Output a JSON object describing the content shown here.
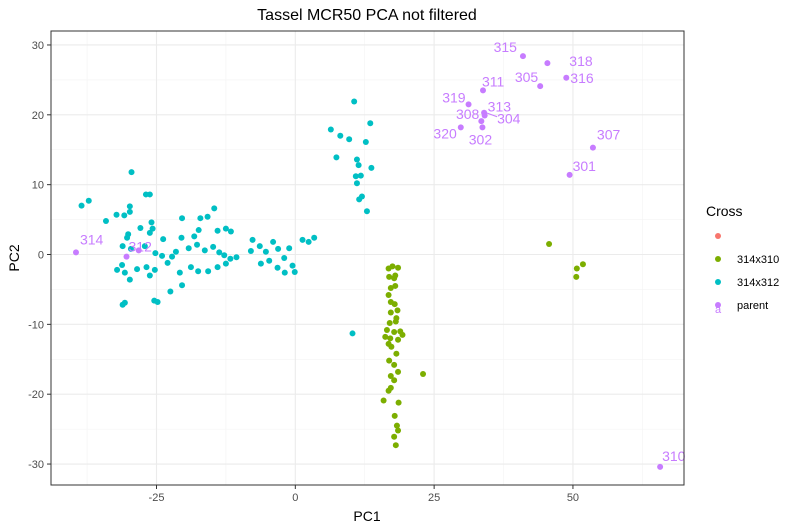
{
  "chart_data": {
    "type": "scatter",
    "title": "Tassel MCR50 PCA not filtered",
    "xlabel": "PC1",
    "ylabel": "PC2",
    "xlim": [
      -44,
      70
    ],
    "ylim": [
      -33,
      32
    ],
    "x_ticks": [
      -25,
      0,
      25,
      50
    ],
    "y_ticks": [
      -30,
      -20,
      -10,
      0,
      10,
      20,
      30
    ],
    "x_tick_labels": [
      "-25",
      "0",
      "25",
      "50"
    ],
    "y_tick_labels": [
      "-30",
      "-20",
      "-10",
      "0",
      "10",
      "20",
      "30"
    ],
    "grid": true,
    "legend": {
      "title": "Cross",
      "position": "right",
      "entries": [
        {
          "label": "",
          "color": "#F8766D",
          "glyph": ""
        },
        {
          "label": "314x310",
          "color": "#7CAE00",
          "glyph": ""
        },
        {
          "label": "314x312",
          "color": "#00BFC4",
          "glyph": ""
        },
        {
          "label": "parent",
          "color": "#C77CFF",
          "glyph": "a"
        }
      ]
    },
    "series": [
      {
        "name": "314x310",
        "color": "#7CAE00",
        "points": [
          [
            45.7,
            1.5
          ],
          [
            51.8,
            -1.4
          ],
          [
            50.7,
            -2.0
          ],
          [
            50.6,
            -3.2
          ],
          [
            16.8,
            -2.0
          ],
          [
            17.5,
            -1.7
          ],
          [
            18.5,
            -1.9
          ],
          [
            16.9,
            -3.2
          ],
          [
            17.8,
            -3.4
          ],
          [
            18.0,
            -3.0
          ],
          [
            17.2,
            -4.8
          ],
          [
            18.0,
            -4.5
          ],
          [
            16.8,
            -5.8
          ],
          [
            17.2,
            -6.8
          ],
          [
            17.9,
            -7.1
          ],
          [
            17.2,
            -8.3
          ],
          [
            18.4,
            -8.0
          ],
          [
            18.2,
            -9.1
          ],
          [
            17.0,
            -9.8
          ],
          [
            18.1,
            -9.6
          ],
          [
            16.5,
            -10.8
          ],
          [
            17.8,
            -11.1
          ],
          [
            18.9,
            -11.0
          ],
          [
            19.3,
            -11.5
          ],
          [
            16.2,
            -11.8
          ],
          [
            17.1,
            -12.0
          ],
          [
            16.8,
            -12.8
          ],
          [
            18.5,
            -12.2
          ],
          [
            17.3,
            -13.2
          ],
          [
            18.2,
            -14.2
          ],
          [
            16.9,
            -15.2
          ],
          [
            17.8,
            -15.8
          ],
          [
            18.5,
            -16.8
          ],
          [
            17.2,
            -17.4
          ],
          [
            17.8,
            -18.0
          ],
          [
            23.0,
            -17.1
          ],
          [
            17.2,
            -19.1
          ],
          [
            16.8,
            -19.5
          ],
          [
            15.9,
            -20.9
          ],
          [
            18.6,
            -21.2
          ],
          [
            17.9,
            -23.1
          ],
          [
            18.3,
            -24.5
          ],
          [
            18.5,
            -25.2
          ],
          [
            17.8,
            -26.1
          ],
          [
            18.1,
            -27.3
          ]
        ]
      },
      {
        "name": "314x312",
        "color": "#00BFC4",
        "points": [
          [
            -38.5,
            7.0
          ],
          [
            -37.2,
            7.7
          ],
          [
            -29.5,
            11.8
          ],
          [
            -26.9,
            8.6
          ],
          [
            -26.2,
            8.6
          ],
          [
            -30.8,
            5.6
          ],
          [
            -29.8,
            6.9
          ],
          [
            -29.8,
            6.1
          ],
          [
            -32.2,
            5.7
          ],
          [
            -34.1,
            4.8
          ],
          [
            -25.9,
            4.6
          ],
          [
            -20.4,
            5.2
          ],
          [
            -17.1,
            5.2
          ],
          [
            -15.8,
            5.4
          ],
          [
            -14.6,
            6.6
          ],
          [
            -30.1,
            2.9
          ],
          [
            -30.3,
            2.4
          ],
          [
            -27.9,
            3.8
          ],
          [
            -26.2,
            3.1
          ],
          [
            -25.7,
            3.7
          ],
          [
            -23.8,
            2.2
          ],
          [
            -20.5,
            2.4
          ],
          [
            -18.2,
            2.6
          ],
          [
            -17.4,
            3.5
          ],
          [
            -14.0,
            3.4
          ],
          [
            -12.5,
            3.7
          ],
          [
            -11.6,
            3.3
          ],
          [
            -31.1,
            1.2
          ],
          [
            -29.6,
            0.8
          ],
          [
            -27.1,
            1.2
          ],
          [
            -25.2,
            0.2
          ],
          [
            -24.0,
            -0.2
          ],
          [
            -22.2,
            -0.3
          ],
          [
            -21.5,
            0.4
          ],
          [
            -19.2,
            0.9
          ],
          [
            -17.7,
            1.4
          ],
          [
            -16.3,
            0.6
          ],
          [
            -14.8,
            1.1
          ],
          [
            -13.7,
            0.3
          ],
          [
            -12.8,
            -0.1
          ],
          [
            -31.2,
            -1.5
          ],
          [
            -32.1,
            -2.2
          ],
          [
            -30.7,
            -2.6
          ],
          [
            -28.5,
            -2.1
          ],
          [
            -26.8,
            -1.8
          ],
          [
            -25.3,
            -2.2
          ],
          [
            -23.0,
            -1.2
          ],
          [
            -20.8,
            -2.6
          ],
          [
            -18.8,
            -1.8
          ],
          [
            -17.5,
            -2.4
          ],
          [
            -15.7,
            -2.4
          ],
          [
            -14.0,
            -1.8
          ],
          [
            -12.5,
            -1.3
          ],
          [
            -11.7,
            -0.6
          ],
          [
            -10.6,
            -0.4
          ],
          [
            -22.5,
            -5.3
          ],
          [
            -20.4,
            -4.4
          ],
          [
            -25.4,
            -6.6
          ],
          [
            -24.8,
            -6.8
          ],
          [
            -31.1,
            -7.2
          ],
          [
            -30.7,
            -6.9
          ],
          [
            -29.8,
            -3.6
          ],
          [
            -26.2,
            -3.0
          ],
          [
            -7.7,
            2.1
          ],
          [
            -6.4,
            1.2
          ],
          [
            -4.0,
            1.8
          ],
          [
            -3.1,
            0.8
          ],
          [
            -2.0,
            -0.5
          ],
          [
            -0.5,
            -1.6
          ],
          [
            1.3,
            2.1
          ],
          [
            2.4,
            1.8
          ],
          [
            3.4,
            2.4
          ],
          [
            -4.7,
            -0.9
          ],
          [
            -6.2,
            -1.3
          ],
          [
            -3.2,
            -1.9
          ],
          [
            -1.9,
            -2.6
          ],
          [
            -0.1,
            -2.5
          ],
          [
            -8.0,
            0.5
          ],
          [
            -5.3,
            0.4
          ],
          [
            -1.1,
            0.9
          ],
          [
            10.6,
            21.9
          ],
          [
            13.5,
            18.8
          ],
          [
            6.4,
            17.9
          ],
          [
            8.1,
            17.0
          ],
          [
            9.7,
            16.5
          ],
          [
            12.7,
            16.1
          ],
          [
            11.1,
            13.6
          ],
          [
            11.4,
            12.8
          ],
          [
            13.7,
            12.4
          ],
          [
            7.4,
            13.9
          ],
          [
            11.8,
            11.3
          ],
          [
            10.9,
            11.2
          ],
          [
            11.1,
            10.2
          ],
          [
            12.0,
            8.3
          ],
          [
            11.5,
            7.9
          ],
          [
            12.9,
            6.2
          ],
          [
            10.3,
            -11.3
          ]
        ]
      },
      {
        "name": "parent",
        "color": "#C77CFF",
        "points": [
          [
            -39.5,
            0.3
          ],
          [
            -30.4,
            -0.3
          ],
          [
            -28.2,
            0.6
          ],
          [
            41.0,
            28.4
          ],
          [
            45.4,
            27.4
          ],
          [
            48.8,
            25.3
          ],
          [
            44.1,
            24.1
          ],
          [
            33.8,
            23.5
          ],
          [
            31.2,
            21.5
          ],
          [
            34.1,
            19.9
          ],
          [
            34.0,
            20.3
          ],
          [
            33.5,
            19.1
          ],
          [
            33.7,
            18.2
          ],
          [
            29.8,
            18.2
          ],
          [
            53.6,
            15.3
          ],
          [
            49.4,
            11.4
          ],
          [
            65.7,
            -30.4
          ]
        ],
        "labels": [
          {
            "text": "314",
            "x": -39.5,
            "y": 0.3
          },
          {
            "text": "312",
            "x": -30.4,
            "y": -0.3
          },
          {
            "text": "315",
            "x": 41.0,
            "y": 28.4
          },
          {
            "text": "318",
            "x": 48.8,
            "y": 25.3
          },
          {
            "text": "305",
            "x": 44.1,
            "y": 24.1
          },
          {
            "text": "316",
            "x": 48.8,
            "y": 25.3
          },
          {
            "text": "311",
            "x": 33.8,
            "y": 23.5
          },
          {
            "text": "319",
            "x": 31.2,
            "y": 21.5
          },
          {
            "text": "313",
            "x": 34.1,
            "y": 19.9
          },
          {
            "text": "308",
            "x": 33.5,
            "y": 19.1
          },
          {
            "text": "304",
            "x": 34.0,
            "y": 20.3
          },
          {
            "text": "320",
            "x": 29.8,
            "y": 18.2
          },
          {
            "text": "302",
            "x": 33.7,
            "y": 18.2
          },
          {
            "text": "307",
            "x": 53.6,
            "y": 15.3
          },
          {
            "text": "301",
            "x": 49.4,
            "y": 11.4
          },
          {
            "text": "310",
            "x": 65.7,
            "y": -30.4
          }
        ]
      }
    ]
  }
}
